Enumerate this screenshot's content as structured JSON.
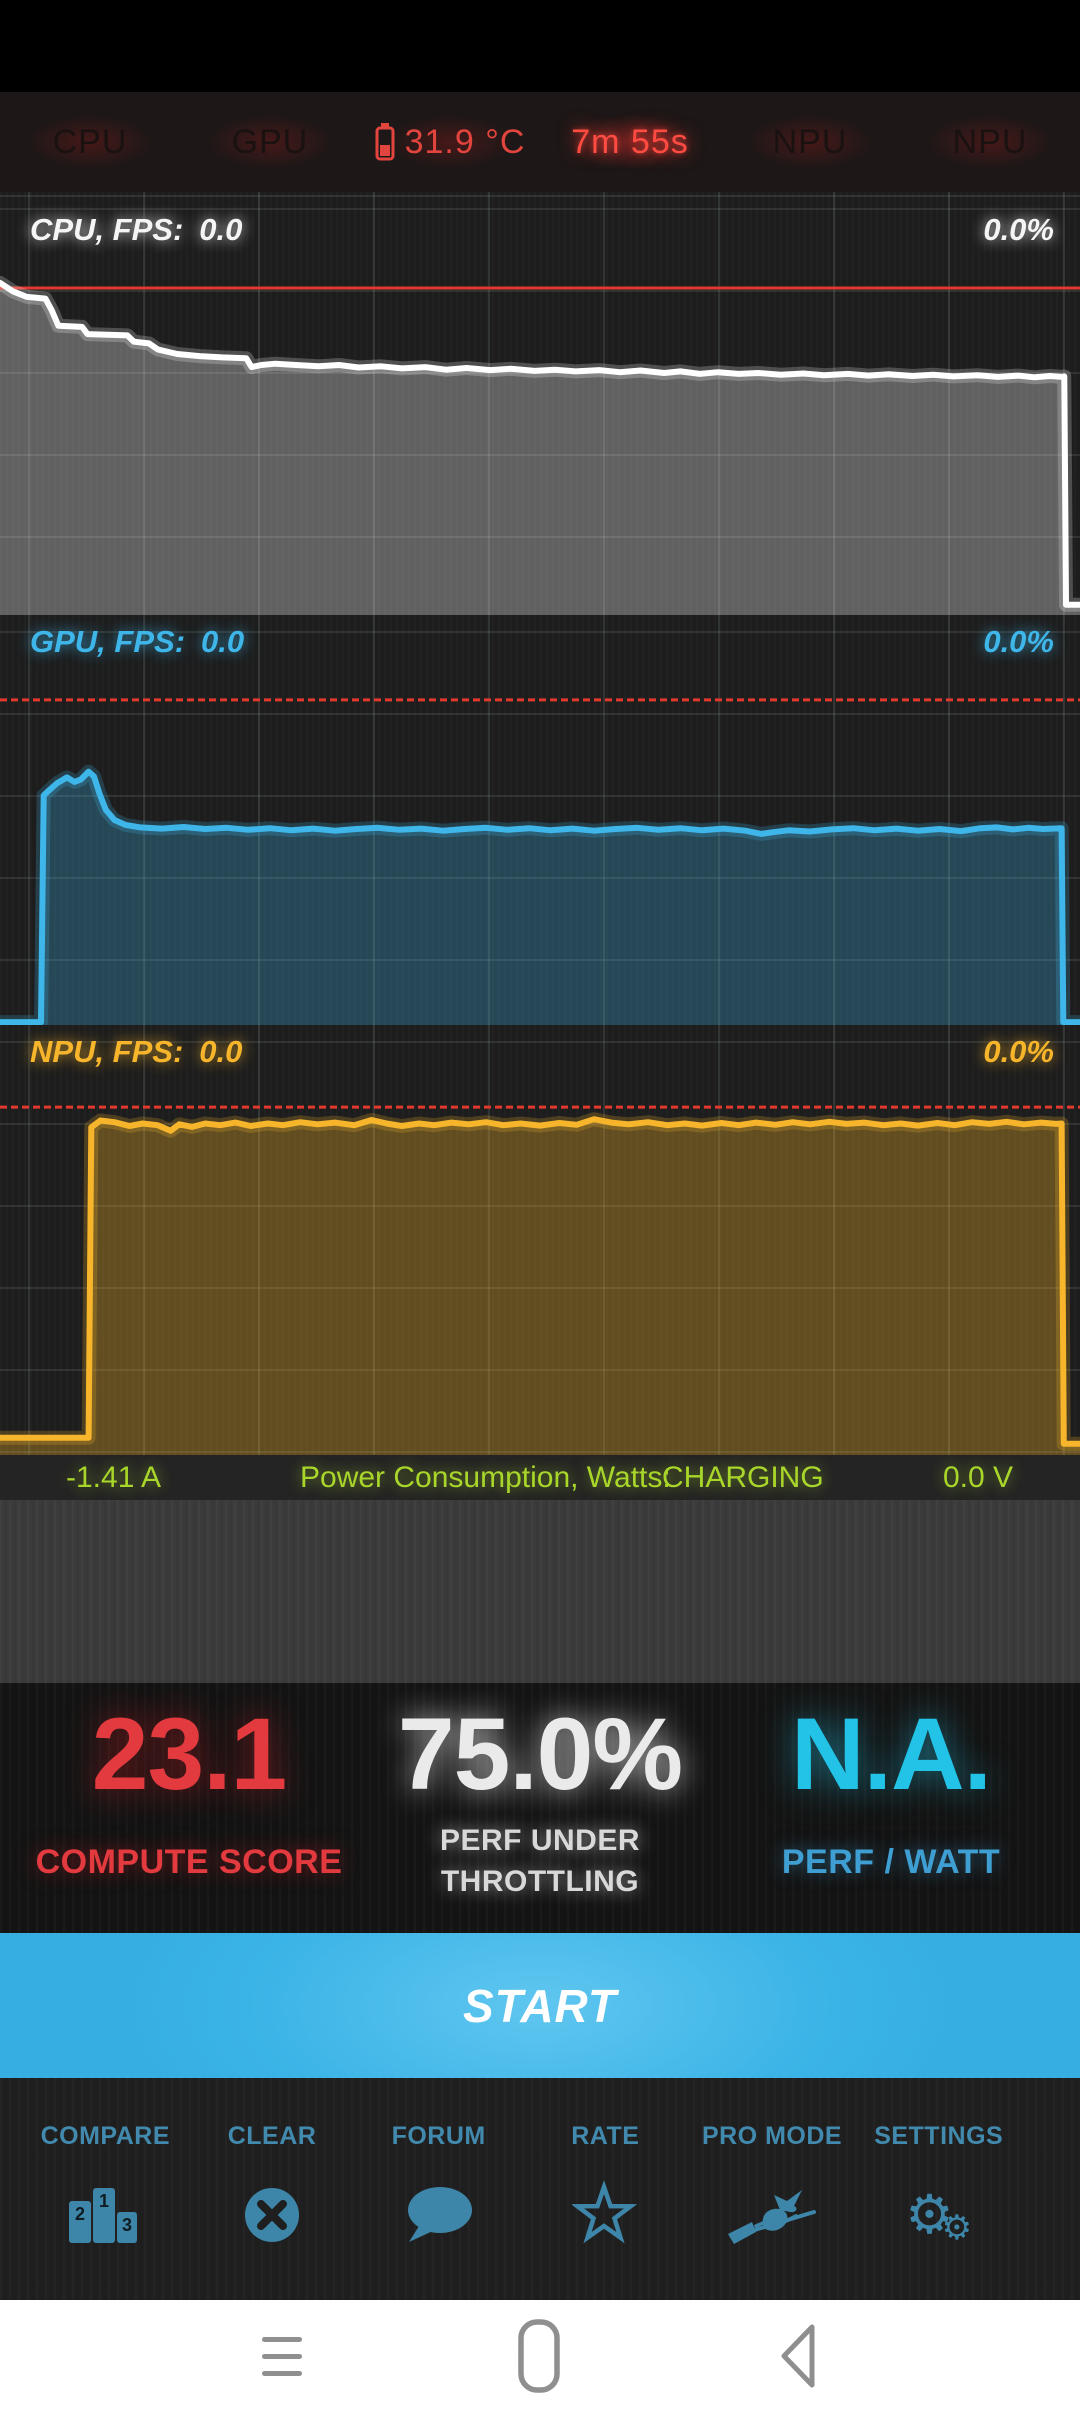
{
  "header": {
    "tabs": [
      {
        "label": "CPU"
      },
      {
        "label": "GPU"
      },
      {
        "label": "31.9 °C",
        "icon": "battery-icon"
      },
      {
        "label": "7m 55s"
      },
      {
        "label": "NPU"
      },
      {
        "label": "NPU"
      }
    ]
  },
  "charts": [
    {
      "id": "cpu",
      "type": "area",
      "label": "CPU, FPS:",
      "fps": "0.0",
      "percent": "0.0%",
      "line_color": "#ffffff",
      "fill_color": "rgba(255,255,255,0.30)",
      "limit_line_color": "#e2382e",
      "limit_line_pct": 22.7,
      "limit_dashed": false,
      "y_axis": "load % (0 bottom - 100 top), points are [x%, % from top]",
      "points": [
        [
          0,
          21.5
        ],
        [
          1.2,
          23.5
        ],
        [
          2.5,
          24.8
        ],
        [
          4.2,
          25.2
        ],
        [
          4.8,
          28
        ],
        [
          5.4,
          31.6
        ],
        [
          7.6,
          31.9
        ],
        [
          8.1,
          33.6
        ],
        [
          11.8,
          33.9
        ],
        [
          12.4,
          35.4
        ],
        [
          13.8,
          35.8
        ],
        [
          14.6,
          37.2
        ],
        [
          16.4,
          38.3
        ],
        [
          18.5,
          38.8
        ],
        [
          20.6,
          39.1
        ],
        [
          22.8,
          39.3
        ],
        [
          23.3,
          41.4
        ],
        [
          24.2,
          40.9
        ],
        [
          25.5,
          40.6
        ],
        [
          27.4,
          40.9
        ],
        [
          29.5,
          41.2
        ],
        [
          31.4,
          40.9
        ],
        [
          33.2,
          41.5
        ],
        [
          35.3,
          41.2
        ],
        [
          37.2,
          41.7
        ],
        [
          39.4,
          41.4
        ],
        [
          41.3,
          42
        ],
        [
          43.2,
          41.6
        ],
        [
          45.4,
          42.1
        ],
        [
          47.3,
          41.8
        ],
        [
          49.5,
          42.3
        ],
        [
          51.4,
          42
        ],
        [
          53.3,
          42.4
        ],
        [
          55.5,
          42.1
        ],
        [
          57.4,
          42.6
        ],
        [
          59.3,
          42.2
        ],
        [
          61.5,
          42.8
        ],
        [
          63,
          42.4
        ],
        [
          64.8,
          43
        ],
        [
          66.5,
          42.6
        ],
        [
          68.4,
          43
        ],
        [
          70.2,
          42.8
        ],
        [
          72.3,
          43.2
        ],
        [
          74.4,
          42.9
        ],
        [
          76.3,
          43.3
        ],
        [
          78.5,
          43
        ],
        [
          80.4,
          43.4
        ],
        [
          82.3,
          43.1
        ],
        [
          84.5,
          43.5
        ],
        [
          86.4,
          43.2
        ],
        [
          88.3,
          43.6
        ],
        [
          90.5,
          43.3
        ],
        [
          92.4,
          43.7
        ],
        [
          94.3,
          43.4
        ],
        [
          95.8,
          43.8
        ],
        [
          97.2,
          43.5
        ],
        [
          98.4,
          43.7
        ],
        [
          98.55,
          43.6
        ],
        [
          98.7,
          97.6
        ],
        [
          100,
          97.6
        ]
      ]
    },
    {
      "id": "gpu",
      "type": "area",
      "label": "GPU, FPS:",
      "fps": "0.0",
      "percent": "0.0%",
      "line_color": "#3fb6ea",
      "fill_color": "rgba(63,182,234,0.28)",
      "limit_line_color": "#e2382e",
      "limit_line_pct": 20.7,
      "limit_dashed": true,
      "points": [
        [
          0,
          99.3
        ],
        [
          3.8,
          99.3
        ],
        [
          4.05,
          44
        ],
        [
          4.6,
          42.6
        ],
        [
          5.3,
          41
        ],
        [
          6.2,
          39.6
        ],
        [
          6.9,
          40.7
        ],
        [
          7.5,
          40.1
        ],
        [
          8.2,
          38.2
        ],
        [
          8.7,
          39.4
        ],
        [
          9.2,
          43.5
        ],
        [
          9.8,
          47.5
        ],
        [
          10.6,
          50
        ],
        [
          11.6,
          51.2
        ],
        [
          13,
          51.8
        ],
        [
          15,
          52.1
        ],
        [
          17,
          51.7
        ],
        [
          19,
          52.2
        ],
        [
          21,
          51.9
        ],
        [
          23,
          52.4
        ],
        [
          25,
          52
        ],
        [
          27,
          52.5
        ],
        [
          29,
          52.1
        ],
        [
          31,
          52.6
        ],
        [
          33,
          52.2
        ],
        [
          35,
          51.9
        ],
        [
          37,
          52.4
        ],
        [
          39,
          52.1
        ],
        [
          41,
          52.6
        ],
        [
          43,
          52.2
        ],
        [
          45,
          51.9
        ],
        [
          47,
          52.4
        ],
        [
          49,
          52
        ],
        [
          51,
          52.5
        ],
        [
          53,
          52.1
        ],
        [
          55,
          52.6
        ],
        [
          57,
          52.2
        ],
        [
          59,
          51.9
        ],
        [
          61,
          52.4
        ],
        [
          63,
          52
        ],
        [
          65,
          52.5
        ],
        [
          67,
          52.1
        ],
        [
          69,
          52.6
        ],
        [
          70.5,
          53.4
        ],
        [
          71.5,
          53
        ],
        [
          73,
          52.5
        ],
        [
          75,
          52.8
        ],
        [
          77,
          52.3
        ],
        [
          79,
          52
        ],
        [
          81,
          52.5
        ],
        [
          83,
          52.1
        ],
        [
          85,
          52.6
        ],
        [
          87,
          52.2
        ],
        [
          89,
          52.7
        ],
        [
          90.8,
          52
        ],
        [
          92.3,
          51.8
        ],
        [
          93.8,
          52.3
        ],
        [
          95.2,
          51.9
        ],
        [
          96.6,
          52.2
        ],
        [
          98.3,
          52
        ],
        [
          98.45,
          99.3
        ],
        [
          100,
          99.3
        ]
      ]
    },
    {
      "id": "npu",
      "type": "area",
      "label": "NPU, FPS:",
      "fps": "0.0",
      "percent": "0.0%",
      "line_color": "#f7b52b",
      "fill_color": "rgba(247,181,43,0.32)",
      "limit_line_color": "#e2382e",
      "limit_line_pct": 19.1,
      "limit_dashed": true,
      "points": [
        [
          0,
          96
        ],
        [
          8.2,
          96
        ],
        [
          8.45,
          23.8
        ],
        [
          9.3,
          22.2
        ],
        [
          10.6,
          22.6
        ],
        [
          12,
          23.5
        ],
        [
          13.2,
          22.9
        ],
        [
          14.6,
          23.3
        ],
        [
          15.8,
          24.6
        ],
        [
          16.6,
          23.1
        ],
        [
          17.8,
          23.7
        ],
        [
          19,
          22.9
        ],
        [
          20.4,
          23.3
        ],
        [
          21.8,
          22.7
        ],
        [
          23.2,
          23.5
        ],
        [
          24.8,
          22.9
        ],
        [
          26.2,
          23.3
        ],
        [
          27.8,
          22.6
        ],
        [
          29.4,
          23.1
        ],
        [
          31,
          22.7
        ],
        [
          32.8,
          23.3
        ],
        [
          34.4,
          22.1
        ],
        [
          35.8,
          22.9
        ],
        [
          37.2,
          23.5
        ],
        [
          38.8,
          22.9
        ],
        [
          40.2,
          23.3
        ],
        [
          41.8,
          22.7
        ],
        [
          43.4,
          23.1
        ],
        [
          45,
          22.6
        ],
        [
          46.6,
          23.3
        ],
        [
          48.2,
          22.9
        ],
        [
          50,
          23.4
        ],
        [
          51.8,
          22.8
        ],
        [
          53.4,
          23.2
        ],
        [
          55,
          21.9
        ],
        [
          56.6,
          22.7
        ],
        [
          58.2,
          23.1
        ],
        [
          60,
          22.6
        ],
        [
          61.8,
          23.3
        ],
        [
          63.4,
          22.9
        ],
        [
          65,
          23.4
        ],
        [
          66.8,
          22.8
        ],
        [
          68.4,
          23.3
        ],
        [
          70,
          22.7
        ],
        [
          71.8,
          23.2
        ],
        [
          73.4,
          22.6
        ],
        [
          75,
          23.1
        ],
        [
          76.8,
          22.5
        ],
        [
          78.4,
          23
        ],
        [
          80,
          22.7
        ],
        [
          81.8,
          23.3
        ],
        [
          83.4,
          22.9
        ],
        [
          85,
          23.4
        ],
        [
          86.8,
          22.8
        ],
        [
          88.4,
          23.3
        ],
        [
          90,
          22.6
        ],
        [
          91.6,
          23
        ],
        [
          93.2,
          22.5
        ],
        [
          94.8,
          23.1
        ],
        [
          96.4,
          22.7
        ],
        [
          97.8,
          23
        ],
        [
          98.3,
          22.9
        ],
        [
          98.5,
          97.4
        ],
        [
          100,
          97.4
        ]
      ]
    }
  ],
  "power_bar": {
    "current": "-1.41 A",
    "label": "Power Consumption, Watts:",
    "status": "CHARGING",
    "voltage": "0.0 V",
    "text_color": "#a9d62a"
  },
  "scores": {
    "compute": {
      "value": "23.1",
      "label": "COMPUTE SCORE",
      "color": "#e23a3e"
    },
    "throttling": {
      "value": "75.0%",
      "label_line1": "PERF UNDER",
      "label_line2": "THROTTLING",
      "color": "#eaeaea"
    },
    "perf_watt": {
      "value": "N.A.",
      "label": "PERF / WATT",
      "color": "#22c3e6"
    }
  },
  "start_button": {
    "label": "START",
    "bg_color": "#3ab3e6"
  },
  "toolbar": {
    "accent_color": "#4189ad",
    "items": [
      {
        "label": "COMPARE",
        "icon": "podium-icon"
      },
      {
        "label": "CLEAR",
        "icon": "circle-x-icon"
      },
      {
        "label": "FORUM",
        "icon": "speech-bubble-icon"
      },
      {
        "label": "RATE",
        "icon": "star-icon"
      },
      {
        "label": "PRO MODE",
        "icon": "witch-icon"
      },
      {
        "label": "SETTINGS",
        "icon": "gears-icon"
      }
    ]
  },
  "nav_bar": {
    "icons": [
      "menu-icon",
      "home-icon",
      "back-icon"
    ]
  },
  "icons": {
    "settings_gear_glyph": "⚙"
  }
}
